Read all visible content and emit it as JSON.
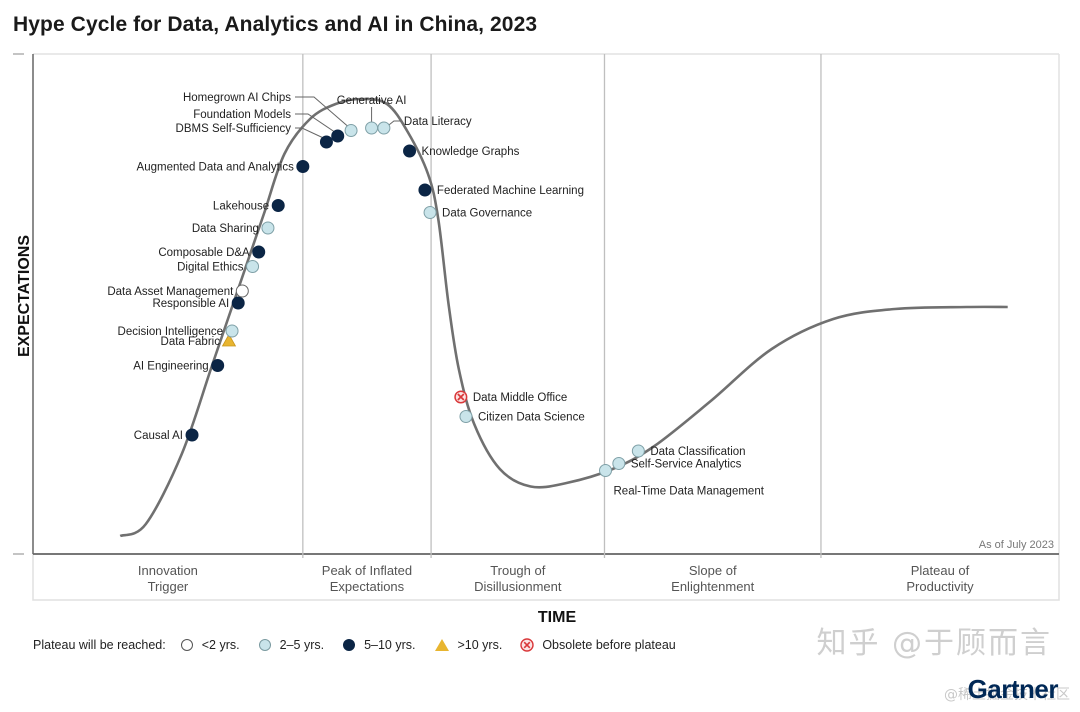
{
  "chart_data": {
    "type": "line",
    "title": "Hype Cycle for Data, Analytics and AI in China, 2023",
    "xlabel": "TIME",
    "ylabel": "EXPECTATIONS",
    "note": "As of July 2023",
    "phases": [
      {
        "line1": "Innovation",
        "line2": "Trigger"
      },
      {
        "line1": "Peak of Inflated",
        "line2": "Expectations"
      },
      {
        "line1": "Trough of",
        "line2": "Disillusionment"
      },
      {
        "line1": "Slope of",
        "line2": "Enlightenment"
      },
      {
        "line1": "Plateau of",
        "line2": "Productivity"
      }
    ],
    "phase_boundaries_pct": [
      0,
      26.3,
      38.8,
      55.7,
      76.8,
      100
    ],
    "curve_pct": [
      [
        8.5,
        96.4
      ],
      [
        11,
        94
      ],
      [
        14.5,
        80
      ],
      [
        17.5,
        62
      ],
      [
        20.5,
        44
      ],
      [
        22.5,
        32
      ],
      [
        24.5,
        20
      ],
      [
        27,
        13
      ],
      [
        29.5,
        10
      ],
      [
        32,
        9
      ],
      [
        34.5,
        10
      ],
      [
        36.5,
        15.5
      ],
      [
        38.5,
        24
      ],
      [
        39.5,
        33
      ],
      [
        40.5,
        50
      ],
      [
        41.5,
        63
      ],
      [
        43,
        74
      ],
      [
        45.5,
        83
      ],
      [
        48.5,
        86.5
      ],
      [
        52,
        85.8
      ],
      [
        56.5,
        83
      ],
      [
        60.5,
        78.5
      ],
      [
        66,
        69.5
      ],
      [
        72,
        59
      ],
      [
        78,
        53
      ],
      [
        84,
        51
      ],
      [
        91,
        50.6
      ],
      [
        95,
        50.6
      ]
    ],
    "technologies": [
      {
        "name": "Causal AI",
        "x": 15.5,
        "y": 76.2,
        "plateau": "5-10",
        "side": "left"
      },
      {
        "name": "AI Engineering",
        "x": 18.0,
        "y": 62.3,
        "plateau": "5-10",
        "side": "left"
      },
      {
        "name": "Data Fabric",
        "x": 19.1,
        "y": 57.4,
        "plateau": ">10",
        "side": "left"
      },
      {
        "name": "Decision Intelligence",
        "x": 19.4,
        "y": 55.4,
        "plateau": "2-5",
        "side": "left"
      },
      {
        "name": "Responsible AI",
        "x": 20.0,
        "y": 49.8,
        "plateau": "5-10",
        "side": "left"
      },
      {
        "name": "Data Asset Management",
        "x": 20.4,
        "y": 47.4,
        "plateau": "<2",
        "side": "left"
      },
      {
        "name": "Digital Ethics",
        "x": 21.4,
        "y": 42.5,
        "plateau": "2-5",
        "side": "left"
      },
      {
        "name": "Composable D&A",
        "x": 22.0,
        "y": 39.6,
        "plateau": "5-10",
        "side": "left"
      },
      {
        "name": "Data Sharing",
        "x": 22.9,
        "y": 34.8,
        "plateau": "2-5",
        "side": "left"
      },
      {
        "name": "Lakehouse",
        "x": 23.9,
        "y": 30.3,
        "plateau": "5-10",
        "side": "left"
      },
      {
        "name": "Augmented Data and Analytics",
        "x": 26.3,
        "y": 22.5,
        "plateau": "5-10",
        "side": "left"
      },
      {
        "name": "DBMS Self-Sufficiency",
        "x": 28.6,
        "y": 17.6,
        "plateau": "5-10",
        "side": "leader-left"
      },
      {
        "name": "Foundation Models",
        "x": 29.7,
        "y": 16.4,
        "plateau": "5-10",
        "side": "leader-left"
      },
      {
        "name": "Homegrown AI Chips",
        "x": 31.0,
        "y": 15.3,
        "plateau": "2-5",
        "side": "leader-left"
      },
      {
        "name": "Generative AI",
        "x": 33.0,
        "y": 14.8,
        "plateau": "2-5",
        "side": "leader-up"
      },
      {
        "name": "Data Literacy",
        "x": 34.2,
        "y": 14.8,
        "plateau": "2-5",
        "side": "leader-right"
      },
      {
        "name": "Knowledge Graphs",
        "x": 36.7,
        "y": 19.4,
        "plateau": "5-10",
        "side": "right"
      },
      {
        "name": "Federated Machine Learning",
        "x": 38.2,
        "y": 27.2,
        "plateau": "5-10",
        "side": "right"
      },
      {
        "name": "Data Governance",
        "x": 38.7,
        "y": 31.7,
        "plateau": "2-5",
        "side": "right"
      },
      {
        "name": "Data Middle Office",
        "x": 41.7,
        "y": 68.6,
        "plateau": "obsolete",
        "side": "right"
      },
      {
        "name": "Citizen Data Science",
        "x": 42.2,
        "y": 72.5,
        "plateau": "2-5",
        "side": "right"
      },
      {
        "name": "Real-Time Data Management",
        "x": 55.8,
        "y": 83.3,
        "plateau": "2-5",
        "side": "below"
      },
      {
        "name": "Self-Service Analytics",
        "x": 57.1,
        "y": 81.9,
        "plateau": "2-5",
        "side": "right"
      },
      {
        "name": "Data Classification",
        "x": 59.0,
        "y": 79.4,
        "plateau": "2-5",
        "side": "right"
      }
    ],
    "legend": {
      "title": "Plateau will be reached:",
      "entries": [
        {
          "key": "<2",
          "label": "<2 yrs."
        },
        {
          "key": "2-5",
          "label": "2–5 yrs."
        },
        {
          "key": "5-10",
          "label": "5–10 yrs."
        },
        {
          "key": ">10",
          "label": ">10 yrs."
        },
        {
          "key": "obsolete",
          "label": "Obsolete before plateau"
        }
      ]
    },
    "colors": {
      "<2": "#ffffff",
      "2-5": "#c9e4ea",
      "5-10": "#0b2545",
      ">10": "#e8b530",
      "obsolete": "#d9383a",
      "curve": "#707070",
      "grid": "#bfbfbf"
    }
  },
  "brand": {
    "logo": "Gartner",
    "watermark": "知乎 @于顾而言",
    "watermark2": "@稀土掘金技术社区"
  }
}
